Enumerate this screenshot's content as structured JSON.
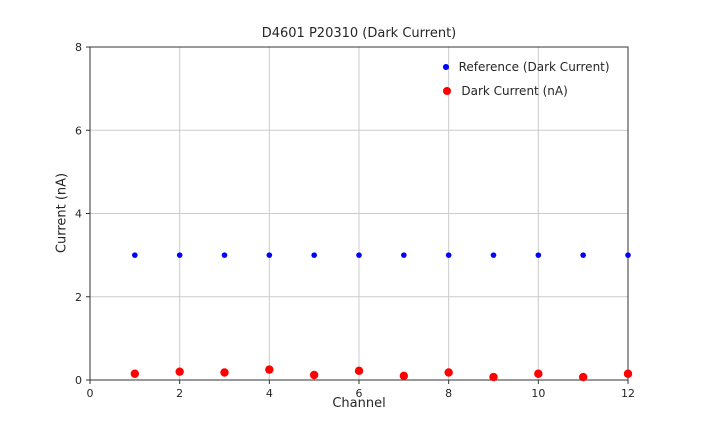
{
  "chart_data": {
    "type": "scatter",
    "title": "D4601 P20310 (Dark Current)",
    "xlabel": "Channel",
    "ylabel": "Current (nA)",
    "xlim": [
      0,
      12
    ],
    "ylim": [
      0,
      8
    ],
    "xticks": [
      0,
      2,
      4,
      6,
      8,
      10,
      12
    ],
    "yticks": [
      0,
      2,
      4,
      6,
      8
    ],
    "grid": true,
    "legend_position": "upper right",
    "x": [
      1,
      2,
      3,
      4,
      5,
      6,
      7,
      8,
      9,
      10,
      11,
      12
    ],
    "series": [
      {
        "name": "Reference (Dark Current)",
        "color": "#0000ff",
        "marker_radius": 2.8,
        "values": [
          3,
          3,
          3,
          3,
          3,
          3,
          3,
          3,
          3,
          3,
          3,
          3
        ]
      },
      {
        "name": "Dark Current (nA)",
        "color": "#ff0000",
        "marker_radius": 4.2,
        "values": [
          0.15,
          0.2,
          0.18,
          0.25,
          0.12,
          0.22,
          0.1,
          0.18,
          0.07,
          0.15,
          0.07,
          0.15
        ]
      }
    ]
  },
  "style": {
    "grid_color": "#cccccc",
    "spine_color": "#333333",
    "tick_color": "#333333",
    "tick_label_color": "#262626"
  }
}
